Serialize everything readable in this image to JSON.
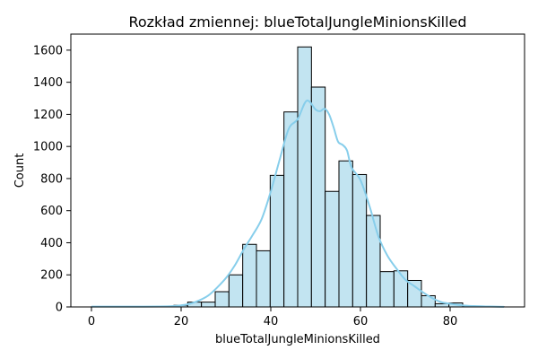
{
  "chart_data": {
    "type": "bar",
    "title": "Rozkład zmiennej: blueTotalJungleMinionsKilled",
    "xlabel": "blueTotalJungleMinionsKilled",
    "ylabel": "Count",
    "xlim": [
      -4.6,
      96.6
    ],
    "ylim": [
      0,
      1700
    ],
    "xticks": [
      0,
      20,
      40,
      60,
      80
    ],
    "yticks": [
      0,
      200,
      400,
      600,
      800,
      1000,
      1200,
      1400,
      1600
    ],
    "grid": false,
    "bin_width": 3.067,
    "bins": [
      {
        "x0": 0.0,
        "x1": 3.067,
        "count": 1
      },
      {
        "x0": 3.067,
        "x1": 6.133,
        "count": 1
      },
      {
        "x0": 6.133,
        "x1": 9.2,
        "count": 0
      },
      {
        "x0": 9.2,
        "x1": 12.267,
        "count": 0
      },
      {
        "x0": 12.267,
        "x1": 15.333,
        "count": 0
      },
      {
        "x0": 15.333,
        "x1": 18.4,
        "count": 2
      },
      {
        "x0": 18.4,
        "x1": 21.467,
        "count": 10
      },
      {
        "x0": 21.467,
        "x1": 24.533,
        "count": 30
      },
      {
        "x0": 24.533,
        "x1": 27.6,
        "count": 30
      },
      {
        "x0": 27.6,
        "x1": 30.667,
        "count": 95
      },
      {
        "x0": 30.667,
        "x1": 33.733,
        "count": 200
      },
      {
        "x0": 33.733,
        "x1": 36.8,
        "count": 390
      },
      {
        "x0": 36.8,
        "x1": 39.867,
        "count": 350
      },
      {
        "x0": 39.867,
        "x1": 42.933,
        "count": 820
      },
      {
        "x0": 42.933,
        "x1": 46.0,
        "count": 1215
      },
      {
        "x0": 46.0,
        "x1": 49.067,
        "count": 1620
      },
      {
        "x0": 49.067,
        "x1": 52.133,
        "count": 1370
      },
      {
        "x0": 52.133,
        "x1": 55.2,
        "count": 720
      },
      {
        "x0": 55.2,
        "x1": 58.267,
        "count": 910
      },
      {
        "x0": 58.267,
        "x1": 61.333,
        "count": 825
      },
      {
        "x0": 61.333,
        "x1": 64.4,
        "count": 570
      },
      {
        "x0": 64.4,
        "x1": 67.467,
        "count": 220
      },
      {
        "x0": 67.467,
        "x1": 70.533,
        "count": 225
      },
      {
        "x0": 70.533,
        "x1": 73.6,
        "count": 165
      },
      {
        "x0": 73.6,
        "x1": 76.667,
        "count": 70
      },
      {
        "x0": 76.667,
        "x1": 79.733,
        "count": 20
      },
      {
        "x0": 79.733,
        "x1": 82.8,
        "count": 25
      },
      {
        "x0": 82.8,
        "x1": 85.867,
        "count": 2
      },
      {
        "x0": 85.867,
        "x1": 88.933,
        "count": 0
      },
      {
        "x0": 88.933,
        "x1": 92.0,
        "count": 1
      }
    ],
    "kde": {
      "x": [
        0,
        5,
        10,
        15,
        18,
        20,
        22,
        24,
        26,
        28,
        30,
        32,
        34,
        36,
        38,
        40,
        42,
        44,
        46,
        48,
        50,
        51,
        52,
        53,
        54,
        55,
        56,
        57,
        58,
        60,
        62,
        64,
        66,
        68,
        70,
        72,
        74,
        76,
        78,
        80,
        82,
        84,
        86,
        88,
        90,
        92
      ],
      "y": [
        2,
        2,
        2,
        3,
        5,
        10,
        20,
        40,
        70,
        120,
        180,
        260,
        360,
        450,
        550,
        720,
        920,
        1110,
        1170,
        1285,
        1230,
        1220,
        1235,
        1200,
        1120,
        1030,
        1010,
        975,
        870,
        790,
        630,
        440,
        320,
        240,
        170,
        130,
        90,
        55,
        30,
        20,
        12,
        7,
        5,
        3,
        2,
        1
      ]
    },
    "colors": {
      "bar_fill": "#c2e4f1",
      "bar_edge": "#000000",
      "kde_line": "#87ceeb"
    }
  }
}
